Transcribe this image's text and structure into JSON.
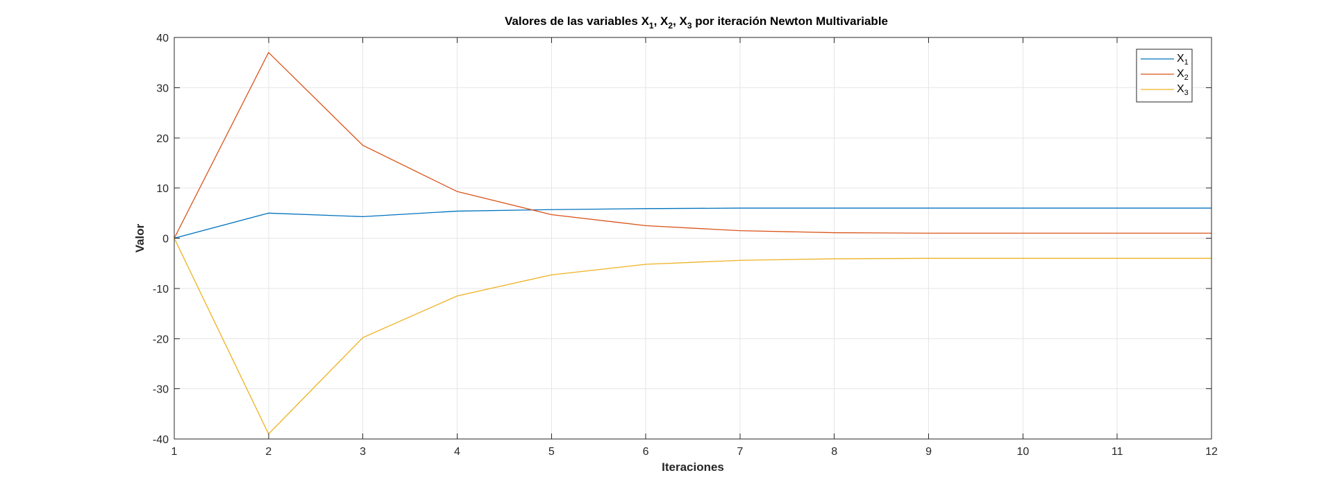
{
  "chart_data": {
    "type": "line",
    "title": {
      "prefix": "Valores de las variables ",
      "v1": "X",
      "s1": "1",
      "sep1": ", ",
      "v2": "X",
      "s2": "2",
      "sep2": ", ",
      "v3": "X",
      "s3": "3",
      "suffix": " por iteración Newton Multivariable"
    },
    "xlabel": "Iteraciones",
    "ylabel": "Valor",
    "xlim": [
      1,
      12
    ],
    "ylim": [
      -40,
      40
    ],
    "xticks": [
      1,
      2,
      3,
      4,
      5,
      6,
      7,
      8,
      9,
      10,
      11,
      12
    ],
    "yticks": [
      40,
      30,
      20,
      10,
      0,
      -10,
      -20,
      -30,
      -40
    ],
    "grid": true,
    "legend_position": "top-right",
    "x": [
      1,
      2,
      3,
      4,
      5,
      6,
      7,
      8,
      9,
      10,
      11,
      12
    ],
    "series": [
      {
        "label_main": "X",
        "label_sub": "1",
        "color": "#0072BD",
        "values": [
          0,
          5,
          4.3,
          5.4,
          5.7,
          5.9,
          6.0,
          6.0,
          6.0,
          6.0,
          6.0,
          6.0
        ]
      },
      {
        "label_main": "X",
        "label_sub": "2",
        "color": "#D95319",
        "values": [
          0,
          37,
          18.5,
          9.3,
          4.7,
          2.5,
          1.5,
          1.1,
          1.0,
          1.0,
          1.0,
          1.0
        ]
      },
      {
        "label_main": "X",
        "label_sub": "3",
        "color": "#EDB120",
        "values": [
          0,
          -39,
          -19.8,
          -11.5,
          -7.3,
          -5.2,
          -4.4,
          -4.1,
          -4.0,
          -4.0,
          -4.0,
          -4.0
        ]
      }
    ]
  }
}
